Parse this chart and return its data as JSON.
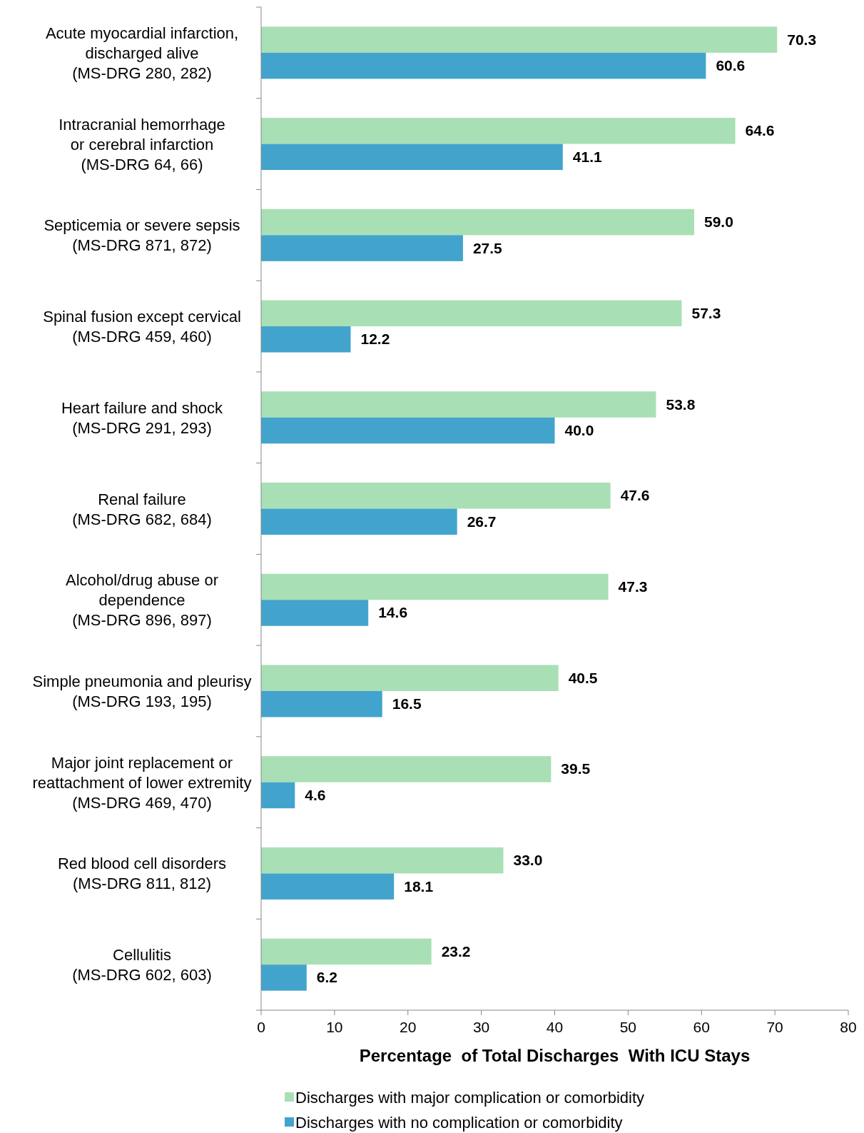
{
  "chart_data": {
    "type": "bar",
    "orientation": "horizontal",
    "xlabel": "Percentage  of Total Discharges  With ICU Stays",
    "categories": [
      "Acute myocardial infarction,\ndischarged alive\n(MS-DRG 280, 282)",
      "Intracranial hemorrhage\nor cerebral infarction\n(MS-DRG 64, 66)",
      "Septicemia or severe sepsis\n(MS-DRG 871, 872)",
      "Spinal fusion except cervical\n(MS-DRG 459, 460)",
      "Heart failure and shock\n(MS-DRG 291, 293)",
      "Renal failure\n(MS-DRG 682, 684)",
      "Alcohol/drug abuse or\ndependence\n(MS-DRG 896, 897)",
      "Simple pneumonia and pleurisy\n(MS-DRG 193, 195)",
      "Major joint replacement or\nreattachment of lower extremity\n(MS-DRG 469, 470)",
      "Red blood cell disorders\n(MS-DRG 811, 812)",
      "Cellulitis\n(MS-DRG 602, 603)"
    ],
    "series": [
      {
        "name": "Discharges with major complication or comorbidity",
        "color": "#a9dfb4",
        "values": [
          70.3,
          64.6,
          59.0,
          57.3,
          53.8,
          47.6,
          47.3,
          40.5,
          39.5,
          33.0,
          23.2
        ],
        "value_labels": [
          "70.3",
          "64.6",
          "59.0",
          "57.3",
          "53.8",
          "47.6",
          "47.3",
          "40.5",
          "39.5",
          "33.0",
          "23.2"
        ]
      },
      {
        "name": "Discharges with no complication or comorbidity",
        "color": "#42a4cc",
        "values": [
          60.6,
          41.1,
          27.5,
          12.2,
          40.0,
          26.7,
          14.6,
          16.5,
          4.6,
          18.1,
          6.2
        ],
        "value_labels": [
          "60.6",
          "41.1",
          "27.5",
          "12.2",
          "40.0",
          "26.7",
          "14.6",
          "16.5",
          "4.6",
          "18.1",
          "6.2"
        ]
      }
    ],
    "xlim": [
      0,
      80
    ],
    "xticks": [
      0,
      10,
      20,
      30,
      40,
      50,
      60,
      70,
      80
    ],
    "grid": false,
    "legend": "bottom"
  }
}
